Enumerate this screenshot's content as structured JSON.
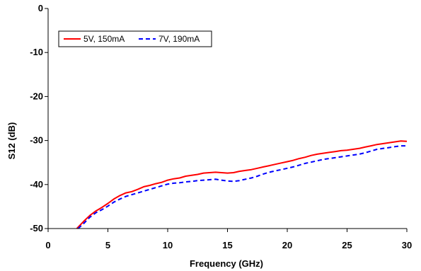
{
  "chart_data": {
    "type": "line",
    "xlabel": "Frequency (GHz)",
    "ylabel": "S12 (dB)",
    "xlim": [
      0,
      30
    ],
    "ylim": [
      -50,
      0
    ],
    "xticks": [
      0,
      5,
      10,
      15,
      20,
      25,
      30
    ],
    "yticks": [
      0,
      -10,
      -20,
      -30,
      -40,
      -50
    ],
    "grid": false,
    "legend_position": "top-left",
    "series": [
      {
        "name": "5V, 150mA",
        "color": "#ff0000",
        "style": "solid",
        "x": [
          2.4,
          3,
          3.5,
          4,
          4.5,
          5,
          5.5,
          6,
          6.5,
          7,
          7.5,
          8,
          8.5,
          9,
          9.5,
          10,
          10.5,
          11,
          11.5,
          12,
          12.5,
          13,
          13.5,
          14,
          14.5,
          15,
          15.5,
          16,
          16.5,
          17,
          17.5,
          18,
          18.5,
          19,
          19.5,
          20,
          20.5,
          21,
          21.5,
          22,
          22.5,
          23,
          23.5,
          24,
          24.5,
          25,
          25.5,
          26,
          26.5,
          27,
          27.5,
          28,
          28.5,
          29,
          29.5,
          30
        ],
        "values": [
          -50,
          -48.3,
          -47,
          -46,
          -45.2,
          -44.3,
          -43.3,
          -42.5,
          -41.9,
          -41.6,
          -41.1,
          -40.5,
          -40.2,
          -39.8,
          -39.5,
          -39,
          -38.7,
          -38.5,
          -38.1,
          -37.9,
          -37.7,
          -37.4,
          -37.3,
          -37.2,
          -37.3,
          -37.4,
          -37.3,
          -37,
          -36.8,
          -36.6,
          -36.3,
          -36,
          -35.7,
          -35.4,
          -35.1,
          -34.8,
          -34.5,
          -34.1,
          -33.8,
          -33.4,
          -33.1,
          -32.9,
          -32.7,
          -32.5,
          -32.3,
          -32.2,
          -32,
          -31.8,
          -31.5,
          -31.2,
          -30.9,
          -30.7,
          -30.5,
          -30.3,
          -30.1,
          -30.2
        ]
      },
      {
        "name": "7V, 190mA",
        "color": "#0000ff",
        "style": "dashed",
        "x": [
          2.5,
          3,
          3.5,
          4,
          4.5,
          5,
          5.5,
          6,
          6.5,
          7,
          7.5,
          8,
          8.5,
          9,
          9.5,
          10,
          10.5,
          11,
          11.5,
          12,
          12.5,
          13,
          13.5,
          14,
          14.5,
          15,
          15.5,
          16,
          16.5,
          17,
          17.5,
          18,
          18.5,
          19,
          19.5,
          20,
          20.5,
          21,
          21.5,
          22,
          22.5,
          23,
          23.5,
          24,
          24.5,
          25,
          25.5,
          26,
          26.5,
          27,
          27.5,
          28,
          28.5,
          29,
          29.5,
          30
        ],
        "values": [
          -50,
          -48.8,
          -47.4,
          -46.4,
          -45.7,
          -44.9,
          -44,
          -43.3,
          -42.7,
          -42.3,
          -41.9,
          -41.5,
          -41.1,
          -40.7,
          -40.3,
          -39.9,
          -39.7,
          -39.6,
          -39.4,
          -39.3,
          -39.1,
          -39,
          -38.9,
          -38.8,
          -39,
          -39.2,
          -39.3,
          -39.1,
          -38.8,
          -38.5,
          -38.1,
          -37.6,
          -37.2,
          -36.9,
          -36.6,
          -36.3,
          -36,
          -35.6,
          -35.2,
          -34.9,
          -34.6,
          -34.3,
          -34.1,
          -33.9,
          -33.7,
          -33.5,
          -33.3,
          -33.1,
          -32.8,
          -32.4,
          -32,
          -31.8,
          -31.6,
          -31.4,
          -31.2,
          -31.2
        ]
      }
    ]
  }
}
